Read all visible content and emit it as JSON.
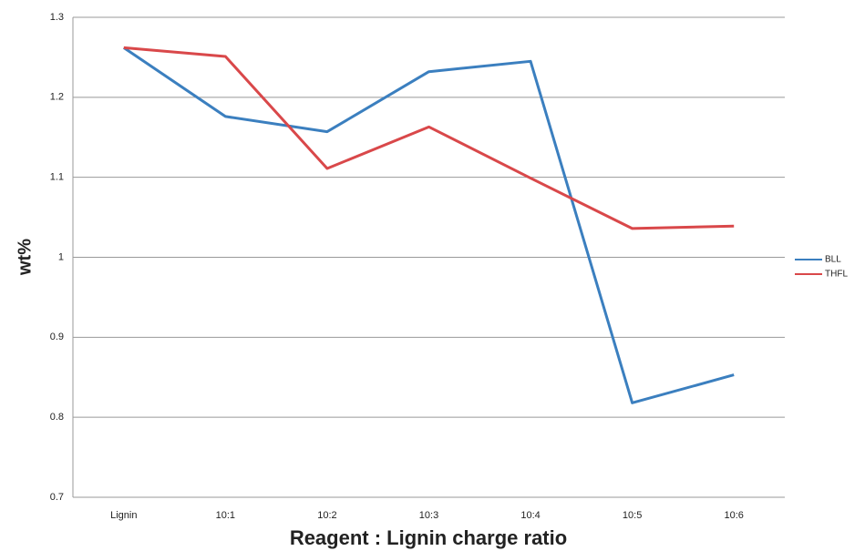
{
  "chart_data": {
    "type": "line",
    "x_label": "Reagent : Lignin charge ratio",
    "y_label": "wt%",
    "categories": [
      "Lignin",
      "10:1",
      "10:2",
      "10:3",
      "10:4",
      "10:5",
      "10:6"
    ],
    "series": [
      {
        "name": "BLL",
        "color": "#3b7fbf",
        "values": [
          1.262,
          1.176,
          1.157,
          1.232,
          1.245,
          0.818,
          0.853
        ]
      },
      {
        "name": "THFL",
        "color": "#d9484a",
        "values": [
          1.262,
          1.251,
          1.111,
          1.163,
          1.099,
          1.036,
          1.039
        ]
      }
    ],
    "ylim": [
      0.7,
      1.3
    ],
    "yticks": [
      0.7,
      0.8,
      0.9,
      1,
      1.1,
      1.2,
      1.3
    ],
    "grid": true,
    "legend": "right"
  }
}
